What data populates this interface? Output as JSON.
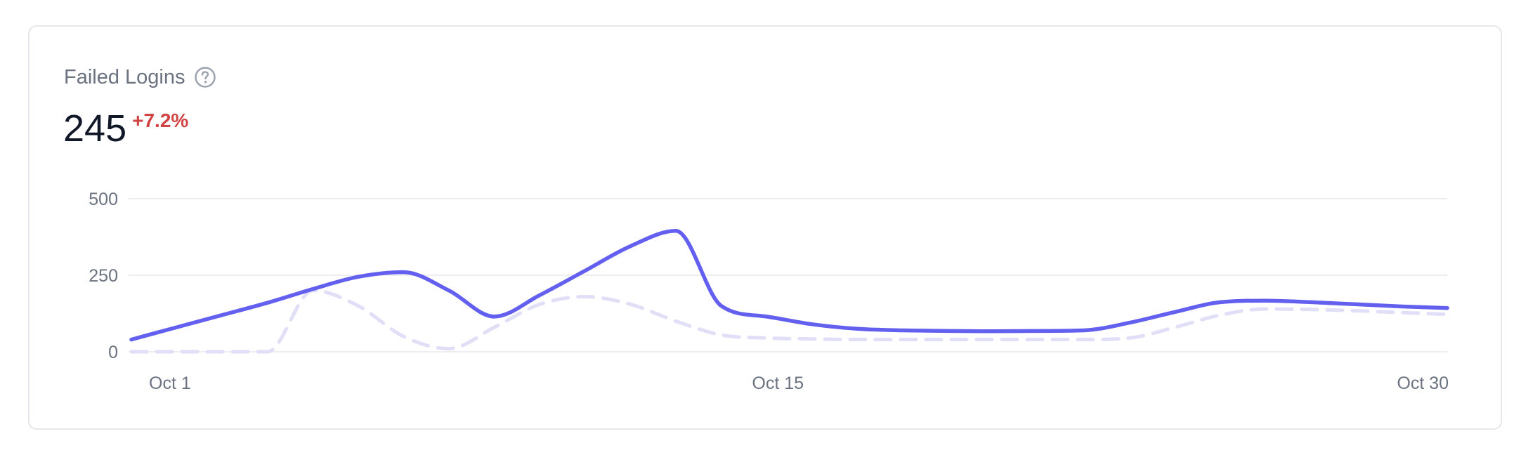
{
  "card": {
    "title": "Failed Logins",
    "help_icon": "question-circle-icon",
    "value": "245",
    "change": "+7.2%",
    "change_color": "#d14343"
  },
  "chart_data": {
    "type": "line",
    "x": [
      1,
      2,
      3,
      4,
      5,
      6,
      7,
      8,
      9,
      10,
      11,
      12,
      13,
      14,
      15,
      16,
      17,
      18,
      19,
      20,
      21,
      22,
      23,
      24,
      25,
      26,
      27,
      28,
      29,
      30
    ],
    "x_tick_values": [
      1,
      15,
      30
    ],
    "x_tick_labels": [
      "Oct 1",
      "Oct 15",
      "Oct 30"
    ],
    "ylim": [
      0,
      500
    ],
    "y_ticks": [
      0,
      250,
      500
    ],
    "y_tick_labels": [
      "0",
      "250",
      "500"
    ],
    "grid": true,
    "title": "",
    "xlabel": "",
    "ylabel": "",
    "series": [
      {
        "values": [
          40,
          80,
          120,
          160,
          205,
          245,
          260,
          200,
          115,
          185,
          265,
          345,
          395,
          150,
          115,
          90,
          75,
          70,
          68,
          67,
          68,
          70,
          95,
          130,
          162,
          167,
          162,
          155,
          148,
          143
        ],
        "color": "#6360f0",
        "style": "solid"
      },
      {
        "values": [
          0,
          0,
          0,
          0,
          200,
          150,
          50,
          10,
          80,
          155,
          180,
          155,
          100,
          55,
          45,
          42,
          40,
          40,
          40,
          40,
          40,
          40,
          45,
          80,
          120,
          140,
          138,
          134,
          128,
          122
        ],
        "color": "#e1def8",
        "style": "dashed"
      }
    ]
  }
}
